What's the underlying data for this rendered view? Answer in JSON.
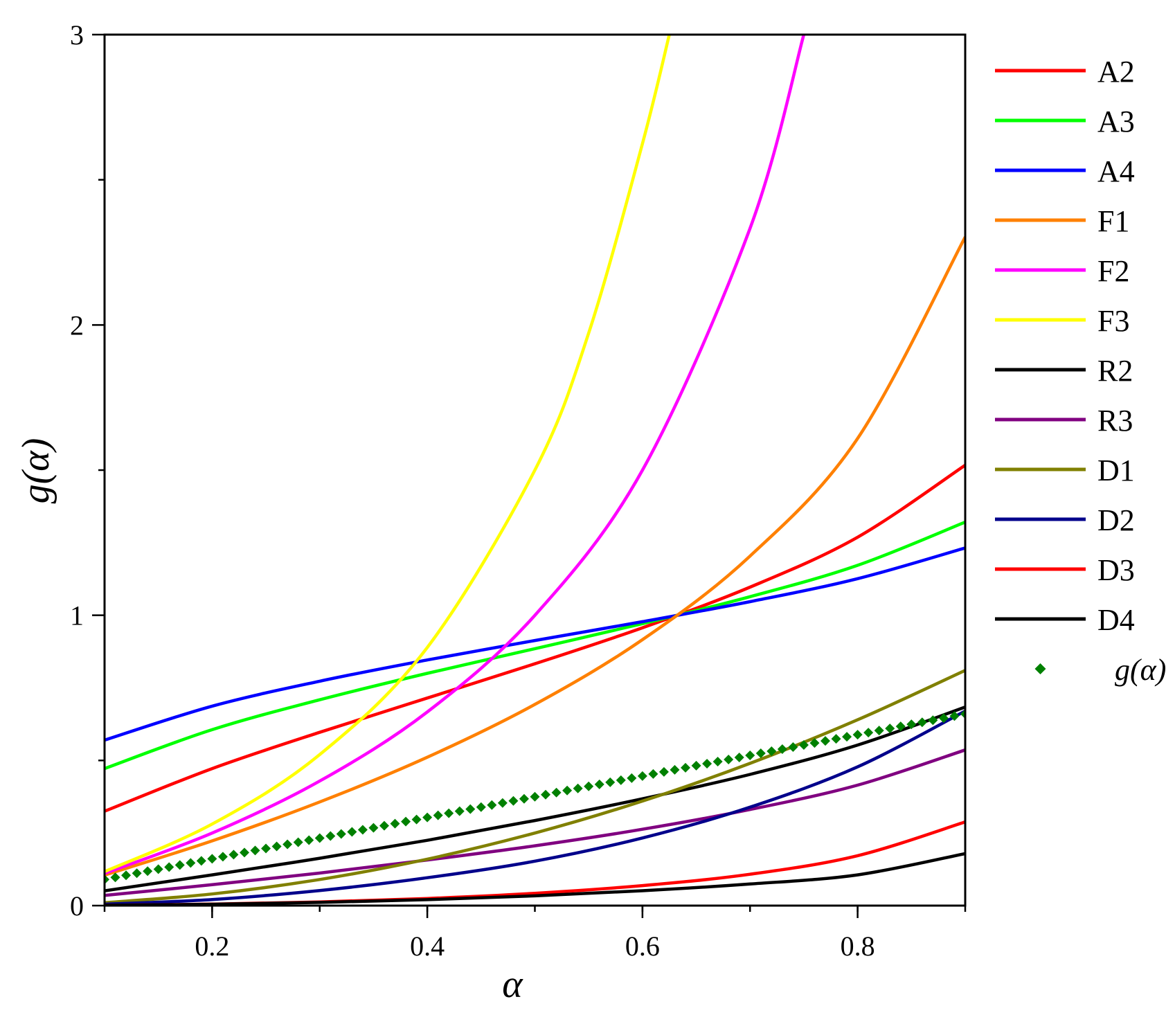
{
  "chart_data": {
    "type": "line",
    "xlabel": "α",
    "ylabel": "g(α)",
    "xlim": [
      0.1,
      0.9
    ],
    "ylim": [
      0,
      3
    ],
    "x_ticks": [
      0.2,
      0.4,
      0.6,
      0.8
    ],
    "x_tick_labels": [
      "0.2",
      "0.4",
      "0.6",
      "0.8"
    ],
    "y_ticks": [
      0,
      1,
      2,
      3
    ],
    "y_tick_labels": [
      "0",
      "1",
      "2",
      "3"
    ],
    "grid": false,
    "legend_position": "right",
    "series": [
      {
        "name": "A2",
        "color": "#ff0000",
        "model": "A2",
        "x": [
          0.1,
          0.2,
          0.3,
          0.4,
          0.5,
          0.6,
          0.7,
          0.8,
          0.9
        ],
        "y": [
          0.325,
          0.472,
          0.597,
          0.715,
          0.833,
          0.957,
          1.097,
          1.269,
          1.517
        ]
      },
      {
        "name": "A3",
        "color": "#00ff00",
        "model": "A3",
        "x": [
          0.1,
          0.2,
          0.3,
          0.4,
          0.5,
          0.6,
          0.7,
          0.8,
          0.9
        ],
        "y": [
          0.472,
          0.606,
          0.709,
          0.8,
          0.885,
          0.971,
          1.064,
          1.172,
          1.321
        ]
      },
      {
        "name": "A4",
        "color": "#0000ff",
        "model": "A4",
        "x": [
          0.1,
          0.2,
          0.3,
          0.4,
          0.5,
          0.6,
          0.7,
          0.8,
          0.9
        ],
        "y": [
          0.57,
          0.687,
          0.773,
          0.846,
          0.913,
          0.978,
          1.047,
          1.126,
          1.232
        ]
      },
      {
        "name": "F1",
        "color": "#ff8000",
        "model": "F1",
        "x": [
          0.1,
          0.2,
          0.3,
          0.4,
          0.5,
          0.6,
          0.7,
          0.8,
          0.9
        ],
        "y": [
          0.105,
          0.223,
          0.357,
          0.511,
          0.693,
          0.916,
          1.204,
          1.609,
          2.303
        ]
      },
      {
        "name": "F2",
        "color": "#ff00ff",
        "model": "F2",
        "x": [
          0.1,
          0.2,
          0.3,
          0.4,
          0.5,
          0.6,
          0.7,
          0.75
        ],
        "y": [
          0.111,
          0.25,
          0.429,
          0.667,
          1.0,
          1.5,
          2.333,
          3.0
        ]
      },
      {
        "name": "F3",
        "color": "#ffff00",
        "model": "F3",
        "x": [
          0.1,
          0.2,
          0.3,
          0.4,
          0.5,
          0.55,
          0.6,
          0.625
        ],
        "y": [
          0.117,
          0.281,
          0.52,
          0.889,
          1.5,
          1.972,
          2.625,
          3.0
        ]
      },
      {
        "name": "R2",
        "color": "#000000",
        "model": "R2",
        "x": [
          0.1,
          0.2,
          0.3,
          0.4,
          0.5,
          0.6,
          0.7,
          0.8,
          0.9
        ],
        "y": [
          0.051,
          0.106,
          0.163,
          0.225,
          0.293,
          0.368,
          0.452,
          0.553,
          0.684
        ]
      },
      {
        "name": "R3",
        "color": "#800080",
        "model": "R3",
        "x": [
          0.1,
          0.2,
          0.3,
          0.4,
          0.5,
          0.6,
          0.7,
          0.8,
          0.9
        ],
        "y": [
          0.035,
          0.072,
          0.112,
          0.157,
          0.206,
          0.263,
          0.331,
          0.415,
          0.536
        ]
      },
      {
        "name": "D1",
        "color": "#808000",
        "model": "D1",
        "x": [
          0.1,
          0.2,
          0.3,
          0.4,
          0.5,
          0.6,
          0.7,
          0.8,
          0.9
        ],
        "y": [
          0.01,
          0.04,
          0.09,
          0.16,
          0.25,
          0.36,
          0.49,
          0.64,
          0.81
        ]
      },
      {
        "name": "D2",
        "color": "#00008b",
        "model": "D2",
        "x": [
          0.1,
          0.2,
          0.3,
          0.4,
          0.5,
          0.6,
          0.7,
          0.8,
          0.9
        ],
        "y": [
          0.005,
          0.021,
          0.052,
          0.096,
          0.153,
          0.233,
          0.339,
          0.478,
          0.67
        ]
      },
      {
        "name": "D3",
        "color": "#ff0000",
        "model": "D3",
        "x": [
          0.1,
          0.2,
          0.3,
          0.4,
          0.5,
          0.6,
          0.7,
          0.8,
          0.9
        ],
        "y": [
          0.0012,
          0.0052,
          0.0127,
          0.0246,
          0.0425,
          0.069,
          0.108,
          0.172,
          0.288
        ]
      },
      {
        "name": "D4",
        "color": "#000000",
        "model": "D4",
        "x": [
          0.1,
          0.2,
          0.3,
          0.4,
          0.5,
          0.6,
          0.7,
          0.8,
          0.9
        ],
        "y": [
          0.0012,
          0.0048,
          0.011,
          0.0205,
          0.0337,
          0.0512,
          0.0744,
          0.106,
          0.179
        ]
      },
      {
        "name": "g(α)",
        "color": "#008000",
        "style": "markers",
        "marker": "diamond",
        "x_start": 0.1,
        "x_end": 0.9,
        "x_step": 0.01,
        "y_start": 0.09,
        "y_end": 0.66
      }
    ]
  }
}
